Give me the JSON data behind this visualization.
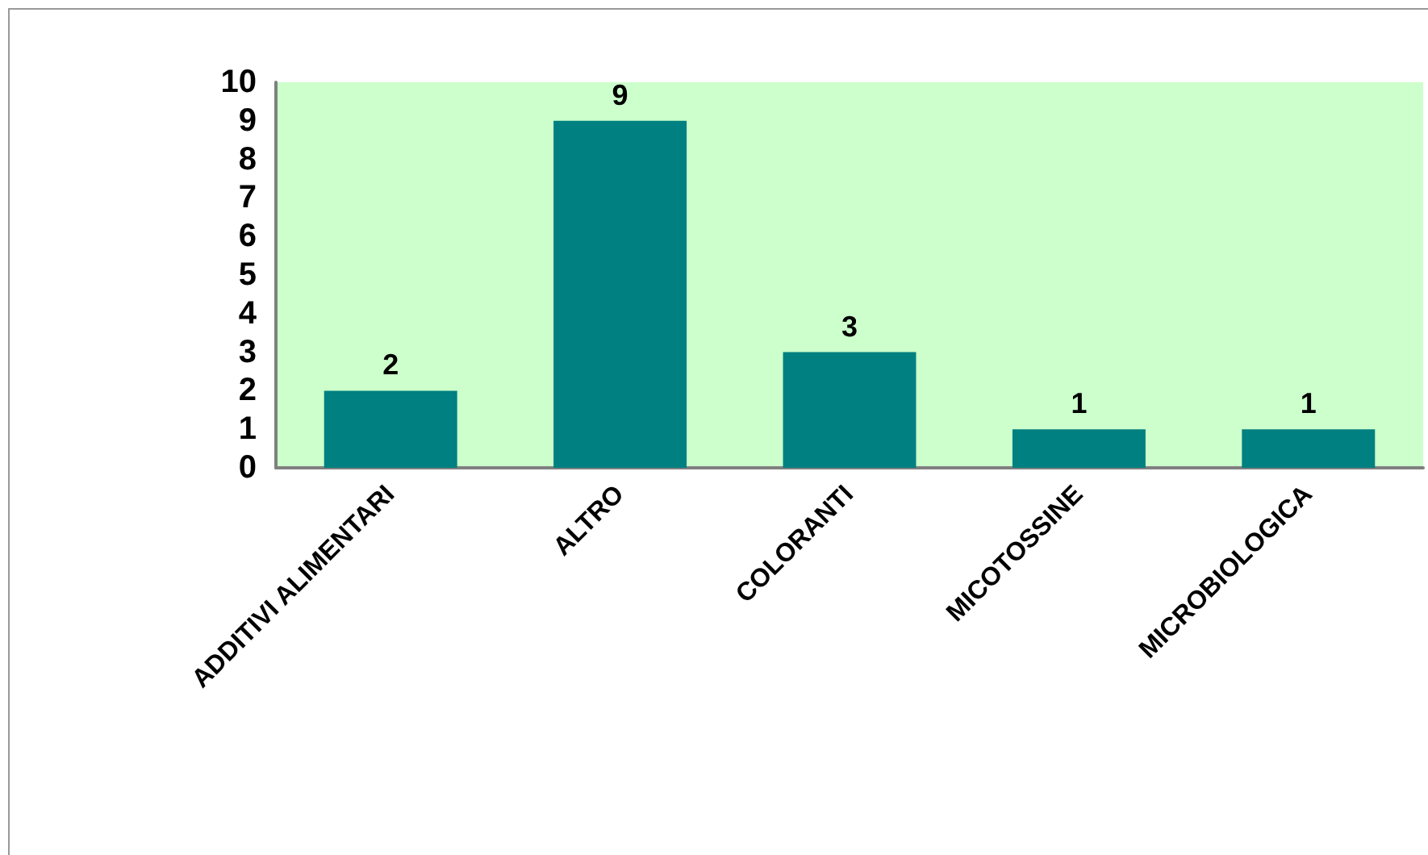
{
  "chart_data": {
    "type": "bar",
    "categories": [
      "ADDITIVI ALIMENTARI",
      "ALTRO",
      "COLORANTI",
      "MICOTOSSINE",
      "MICROBIOLOGICA"
    ],
    "values": [
      2,
      9,
      3,
      1,
      1
    ],
    "color": "#008080",
    "ylim": [
      0,
      10
    ],
    "yticks": [
      0,
      1,
      2,
      3,
      4,
      5,
      6,
      7,
      8,
      9,
      10
    ],
    "grid": false,
    "data_labels": true
  }
}
